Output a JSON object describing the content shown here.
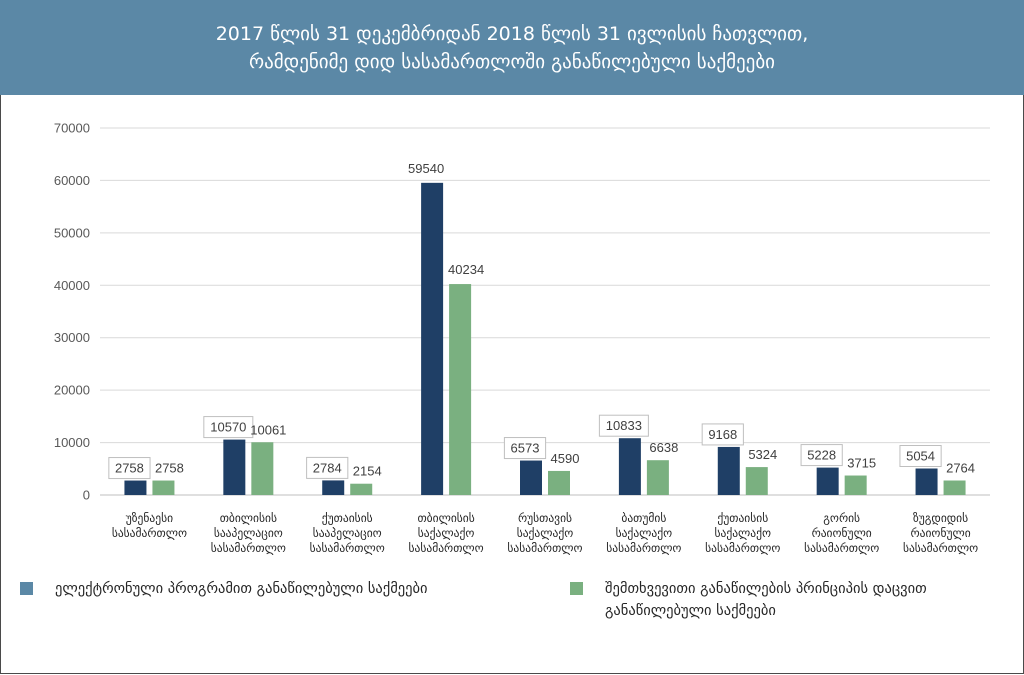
{
  "header": {
    "title_line1": "2017 წლის 31 დეკემბრიდან 2018 წლის 31 ივლისის ჩათვლით,",
    "title_line2": "რამდენიმე დიდ სასამართლოში განაწილებული საქმეები"
  },
  "colors": {
    "header_bg": "#5b88a6",
    "series1": "#1f3f66",
    "series2": "#7ab080",
    "grid": "#d9d9d9"
  },
  "chart_data": {
    "type": "bar",
    "ylim": [
      0,
      70000
    ],
    "yticks": [
      0,
      10000,
      20000,
      30000,
      40000,
      50000,
      60000,
      70000
    ],
    "grid": true,
    "legend_position": "bottom",
    "categories": [
      [
        "უზენაესი",
        "სასამართლო"
      ],
      [
        "თბილისის",
        "სააპელაციო",
        "სასამართლო"
      ],
      [
        "ქუთაისის",
        "სააპელაციო",
        "სასამართლო"
      ],
      [
        "თბილისის",
        "საქალაქო",
        "სასამართლო"
      ],
      [
        "რუსთავის",
        "საქალაქო",
        "სასამართლო"
      ],
      [
        "ბათუმის",
        "საქალაქო",
        "სასამართლო"
      ],
      [
        "ქუთაისის",
        "საქალაქო",
        "სასამართლო"
      ],
      [
        "გორის",
        "რაიონული",
        "სასამართლო"
      ],
      [
        "ზუგდიდის",
        "რაიონული",
        "სასამართლო"
      ]
    ],
    "series": [
      {
        "name": "ელექტრონული პროგრამით განაწილებული საქმეები",
        "values": [
          2758,
          10570,
          2784,
          59540,
          6573,
          10833,
          9168,
          5228,
          5054
        ],
        "label_boxed": [
          true,
          true,
          true,
          false,
          true,
          true,
          true,
          true,
          true
        ]
      },
      {
        "name": "შემთხვევითი განაწილების პრინციპის დაცვით განაწილებული საქმეები",
        "values": [
          2758,
          10061,
          2154,
          40234,
          4590,
          6638,
          5324,
          3715,
          2764
        ],
        "label_boxed": [
          false,
          false,
          false,
          false,
          false,
          false,
          false,
          false,
          false
        ]
      }
    ]
  },
  "legend": {
    "series1_label": "ელექტრონული პროგრამით განაწილებული საქმეები",
    "series2_line1": "შემთხვევითი განაწილების პრინციპის დაცვით",
    "series2_line2": "განაწილებული საქმეები"
  }
}
